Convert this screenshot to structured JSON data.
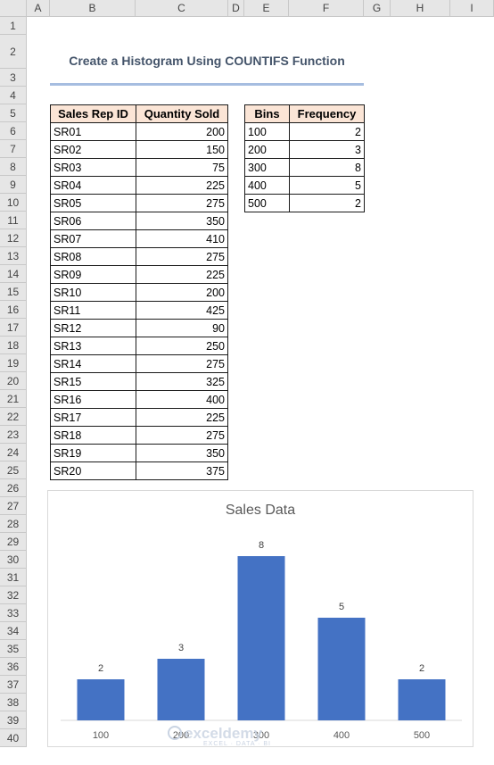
{
  "columns": [
    "A",
    "B",
    "C",
    "D",
    "E",
    "F",
    "G",
    "H",
    "I"
  ],
  "rows": [
    "1",
    "2",
    "3",
    "4",
    "5",
    "6",
    "7",
    "8",
    "9",
    "10",
    "11",
    "12",
    "13",
    "14",
    "15",
    "16",
    "17",
    "18",
    "19",
    "20",
    "21",
    "22",
    "23",
    "24",
    "25",
    "26",
    "27",
    "28",
    "29",
    "30",
    "31",
    "32",
    "33",
    "34",
    "35",
    "36",
    "37",
    "38",
    "39",
    "40"
  ],
  "sheet_title": "Create a Histogram Using COUNTIFS Function",
  "sales_table": {
    "headers": [
      "Sales Rep ID",
      "Quantity Sold"
    ],
    "rows": [
      [
        "SR01",
        "200"
      ],
      [
        "SR02",
        "150"
      ],
      [
        "SR03",
        "75"
      ],
      [
        "SR04",
        "225"
      ],
      [
        "SR05",
        "275"
      ],
      [
        "SR06",
        "350"
      ],
      [
        "SR07",
        "410"
      ],
      [
        "SR08",
        "275"
      ],
      [
        "SR09",
        "225"
      ],
      [
        "SR10",
        "200"
      ],
      [
        "SR11",
        "425"
      ],
      [
        "SR12",
        "90"
      ],
      [
        "SR13",
        "250"
      ],
      [
        "SR14",
        "275"
      ],
      [
        "SR15",
        "325"
      ],
      [
        "SR16",
        "400"
      ],
      [
        "SR17",
        "225"
      ],
      [
        "SR18",
        "275"
      ],
      [
        "SR19",
        "350"
      ],
      [
        "SR20",
        "375"
      ]
    ]
  },
  "bins_table": {
    "headers": [
      "Bins",
      "Frequency"
    ],
    "rows": [
      [
        "100",
        "2"
      ],
      [
        "200",
        "3"
      ],
      [
        "300",
        "8"
      ],
      [
        "400",
        "5"
      ],
      [
        "500",
        "2"
      ]
    ]
  },
  "watermark": {
    "name": "exceldemy",
    "tagline": "EXCEL · DATA · BI"
  },
  "chart_data": {
    "type": "bar",
    "title": "Sales Data",
    "categories": [
      "100",
      "200",
      "300",
      "400",
      "500"
    ],
    "values": [
      2,
      3,
      8,
      5,
      2
    ],
    "ylim": [
      0,
      8
    ],
    "bar_color": "#4472c4",
    "grid": false,
    "legend": "none"
  }
}
